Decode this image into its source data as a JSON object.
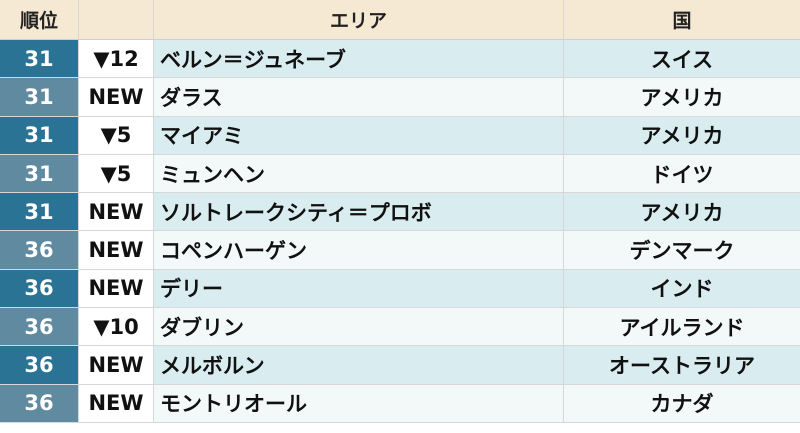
{
  "header": {
    "rank": "順位",
    "change": "",
    "area": "エリア",
    "country": "国"
  },
  "rows": [
    {
      "rank": "31",
      "change": "▼12",
      "area": "ベルン＝ジュネーブ",
      "country": "スイス"
    },
    {
      "rank": "31",
      "change": "NEW",
      "area": "ダラス",
      "country": "アメリカ"
    },
    {
      "rank": "31",
      "change": "▼5",
      "area": "マイアミ",
      "country": "アメリカ"
    },
    {
      "rank": "31",
      "change": "▼5",
      "area": "ミュンヘン",
      "country": "ドイツ"
    },
    {
      "rank": "31",
      "change": "NEW",
      "area": "ソルトレークシティ＝プロボ",
      "country": "アメリカ"
    },
    {
      "rank": "36",
      "change": "NEW",
      "area": "コペンハーゲン",
      "country": "デンマーク"
    },
    {
      "rank": "36",
      "change": "NEW",
      "area": "デリー",
      "country": "インド"
    },
    {
      "rank": "36",
      "change": "▼10",
      "area": "ダブリン",
      "country": "アイルランド"
    },
    {
      "rank": "36",
      "change": "NEW",
      "area": "メルボルン",
      "country": "オーストラリア"
    },
    {
      "rank": "36",
      "change": "NEW",
      "area": "モントリオール",
      "country": "カナダ"
    }
  ],
  "colors": {
    "rank_dark": "#2b7394",
    "rank_light": "#5f8aa0",
    "header_bg": "#f5e9d4",
    "row_tint": "#d9ecef"
  }
}
